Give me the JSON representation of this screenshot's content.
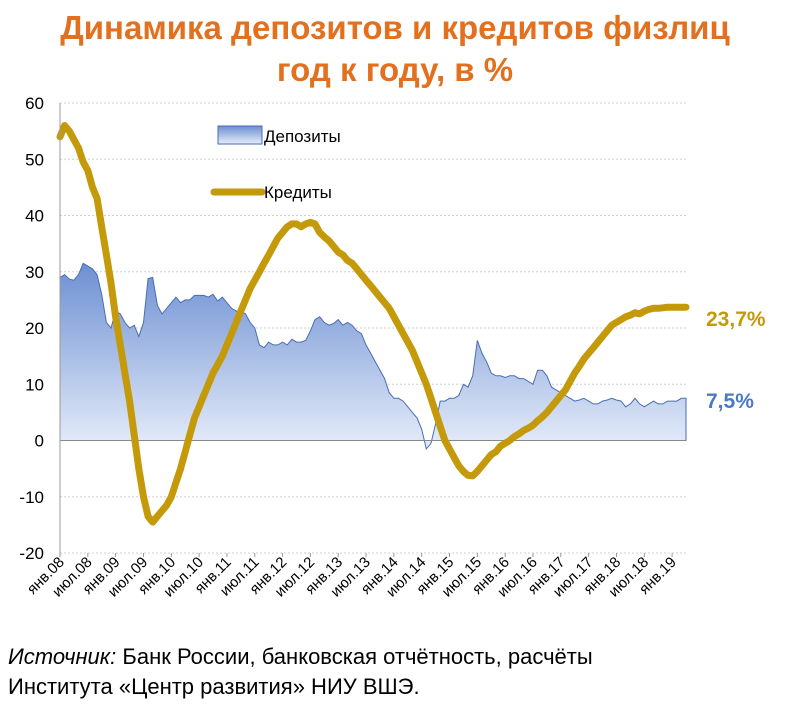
{
  "title_line1": "Динамика депозитов и кредитов физлиц",
  "title_line2": "год к году, в %",
  "source": {
    "label": "Источник:",
    "line1_rest": " Банк России, банковская отчётность, расчёты",
    "line2": "Института «Центр развития» НИУ ВШЭ."
  },
  "chart_data": {
    "type": "area",
    "ylim": [
      -20,
      60
    ],
    "yticks": [
      -20,
      -10,
      0,
      10,
      20,
      30,
      40,
      50,
      60
    ],
    "x_tick_labels": [
      "янв.08",
      "июл.08",
      "янв.09",
      "июл.09",
      "янв.10",
      "июл.10",
      "янв.11",
      "июл.11",
      "янв.12",
      "июл.12",
      "янв.13",
      "июл.13",
      "янв.14",
      "июл.14",
      "янв.15",
      "июл.15",
      "янв.16",
      "июл.16",
      "янв.17",
      "июл.17",
      "янв.18",
      "июл.18",
      "янв.19"
    ],
    "x_start": "2008-01",
    "x_end": "2019-04",
    "series": [
      {
        "name": "Депозиты",
        "kind": "area",
        "color": "#5B7FC4",
        "end_label": "7,5%",
        "points": [
          [
            "2008-01",
            29
          ],
          [
            "2008-02",
            29.5
          ],
          [
            "2008-03",
            28.7
          ],
          [
            "2008-04",
            28.5
          ],
          [
            "2008-05",
            29.5
          ],
          [
            "2008-06",
            31.5
          ],
          [
            "2008-07",
            31
          ],
          [
            "2008-08",
            30.5
          ],
          [
            "2008-09",
            29.5
          ],
          [
            "2008-10",
            26
          ],
          [
            "2008-11",
            21
          ],
          [
            "2008-12",
            20
          ],
          [
            "2009-01",
            23
          ],
          [
            "2009-02",
            22.5
          ],
          [
            "2009-03",
            21
          ],
          [
            "2009-04",
            20
          ],
          [
            "2009-05",
            20.5
          ],
          [
            "2009-06",
            18.5
          ],
          [
            "2009-07",
            21
          ],
          [
            "2009-08",
            28.8
          ],
          [
            "2009-09",
            29
          ],
          [
            "2009-10",
            24
          ],
          [
            "2009-11",
            22.5
          ],
          [
            "2009-12",
            23.5
          ],
          [
            "2010-01",
            24.5
          ],
          [
            "2010-02",
            25.5
          ],
          [
            "2010-03",
            24.5
          ],
          [
            "2010-04",
            25
          ],
          [
            "2010-05",
            25
          ],
          [
            "2010-06",
            25.8
          ],
          [
            "2010-07",
            25.8
          ],
          [
            "2010-08",
            25.8
          ],
          [
            "2010-09",
            25.5
          ],
          [
            "2010-10",
            26
          ],
          [
            "2010-11",
            24.8
          ],
          [
            "2010-12",
            25.5
          ],
          [
            "2011-01",
            24.5
          ],
          [
            "2011-02",
            23.5
          ],
          [
            "2011-03",
            23
          ],
          [
            "2011-04",
            23
          ],
          [
            "2011-05",
            22.5
          ],
          [
            "2011-06",
            21
          ],
          [
            "2011-07",
            20
          ],
          [
            "2011-08",
            17
          ],
          [
            "2011-09",
            16.5
          ],
          [
            "2011-10",
            17.5
          ],
          [
            "2011-11",
            17
          ],
          [
            "2011-12",
            17
          ],
          [
            "2012-01",
            17.5
          ],
          [
            "2012-02",
            17
          ],
          [
            "2012-03",
            18
          ],
          [
            "2012-04",
            17.5
          ],
          [
            "2012-05",
            17.5
          ],
          [
            "2012-06",
            17.8
          ],
          [
            "2012-07",
            19.5
          ],
          [
            "2012-08",
            21.5
          ],
          [
            "2012-09",
            22
          ],
          [
            "2012-10",
            21
          ],
          [
            "2012-11",
            20.5
          ],
          [
            "2012-12",
            20.8
          ],
          [
            "2013-01",
            21.5
          ],
          [
            "2013-02",
            20.5
          ],
          [
            "2013-03",
            21
          ],
          [
            "2013-04",
            20.5
          ],
          [
            "2013-05",
            19.5
          ],
          [
            "2013-06",
            19
          ],
          [
            "2013-07",
            17
          ],
          [
            "2013-08",
            15.5
          ],
          [
            "2013-09",
            14
          ],
          [
            "2013-10",
            12.5
          ],
          [
            "2013-11",
            11
          ],
          [
            "2013-12",
            8.5
          ],
          [
            "2014-01",
            7.5
          ],
          [
            "2014-02",
            7.5
          ],
          [
            "2014-03",
            7
          ],
          [
            "2014-04",
            6
          ],
          [
            "2014-05",
            5
          ],
          [
            "2014-06",
            4
          ],
          [
            "2014-07",
            2
          ],
          [
            "2014-08",
            -1.5
          ],
          [
            "2014-09",
            -0.5
          ],
          [
            "2014-10",
            3
          ],
          [
            "2014-11",
            7
          ],
          [
            "2014-12",
            7
          ],
          [
            "2015-01",
            7.5
          ],
          [
            "2015-02",
            7.5
          ],
          [
            "2015-03",
            8
          ],
          [
            "2015-04",
            10
          ],
          [
            "2015-05",
            9.5
          ],
          [
            "2015-06",
            11.5
          ],
          [
            "2015-07",
            17.8
          ],
          [
            "2015-08",
            15.5
          ],
          [
            "2015-09",
            14
          ],
          [
            "2015-10",
            12
          ],
          [
            "2015-11",
            11.5
          ],
          [
            "2015-12",
            11.5
          ],
          [
            "2016-01",
            11.2
          ],
          [
            "2016-02",
            11.5
          ],
          [
            "2016-03",
            11.5
          ],
          [
            "2016-04",
            11
          ],
          [
            "2016-05",
            11
          ],
          [
            "2016-06",
            10.5
          ],
          [
            "2016-07",
            10
          ],
          [
            "2016-08",
            12.5
          ],
          [
            "2016-09",
            12.5
          ],
          [
            "2016-10",
            11.5
          ],
          [
            "2016-11",
            9.5
          ],
          [
            "2016-12",
            9
          ],
          [
            "2017-01",
            8.5
          ],
          [
            "2017-02",
            8
          ],
          [
            "2017-03",
            7.5
          ],
          [
            "2017-04",
            7
          ],
          [
            "2017-05",
            7.2
          ],
          [
            "2017-06",
            7.5
          ],
          [
            "2017-07",
            7
          ],
          [
            "2017-08",
            6.5
          ],
          [
            "2017-09",
            6.5
          ],
          [
            "2017-10",
            7
          ],
          [
            "2017-11",
            7.2
          ],
          [
            "2017-12",
            7.5
          ],
          [
            "2018-01",
            7.2
          ],
          [
            "2018-02",
            7
          ],
          [
            "2018-03",
            6
          ],
          [
            "2018-04",
            6.5
          ],
          [
            "2018-05",
            7.5
          ],
          [
            "2018-06",
            6.5
          ],
          [
            "2018-07",
            6
          ],
          [
            "2018-08",
            6.5
          ],
          [
            "2018-09",
            7
          ],
          [
            "2018-10",
            6.5
          ],
          [
            "2018-11",
            6.5
          ],
          [
            "2018-12",
            7
          ],
          [
            "2019-01",
            7
          ],
          [
            "2019-02",
            7
          ],
          [
            "2019-03",
            7.5
          ],
          [
            "2019-04",
            7.5
          ]
        ]
      },
      {
        "name": "Кредиты",
        "kind": "line",
        "color": "#C49A0A",
        "end_label": "23,7%",
        "points": [
          [
            "2008-01",
            54
          ],
          [
            "2008-02",
            56
          ],
          [
            "2008-03",
            55
          ],
          [
            "2008-04",
            53.5
          ],
          [
            "2008-05",
            52
          ],
          [
            "2008-06",
            49.5
          ],
          [
            "2008-07",
            48
          ],
          [
            "2008-08",
            45
          ],
          [
            "2008-09",
            43
          ],
          [
            "2008-10",
            38
          ],
          [
            "2008-11",
            33
          ],
          [
            "2008-12",
            28
          ],
          [
            "2009-01",
            22
          ],
          [
            "2009-02",
            17
          ],
          [
            "2009-03",
            12
          ],
          [
            "2009-04",
            7
          ],
          [
            "2009-05",
            1
          ],
          [
            "2009-06",
            -5
          ],
          [
            "2009-07",
            -10
          ],
          [
            "2009-08",
            -13.5
          ],
          [
            "2009-09",
            -14.5
          ],
          [
            "2009-10",
            -13.5
          ],
          [
            "2009-11",
            -12.5
          ],
          [
            "2009-12",
            -11.5
          ],
          [
            "2010-01",
            -10
          ],
          [
            "2010-02",
            -7.5
          ],
          [
            "2010-03",
            -5
          ],
          [
            "2010-04",
            -2
          ],
          [
            "2010-05",
            1
          ],
          [
            "2010-06",
            4
          ],
          [
            "2010-07",
            6
          ],
          [
            "2010-08",
            8
          ],
          [
            "2010-09",
            10
          ],
          [
            "2010-10",
            12
          ],
          [
            "2010-11",
            13.5
          ],
          [
            "2010-12",
            15
          ],
          [
            "2011-01",
            17
          ],
          [
            "2011-02",
            19
          ],
          [
            "2011-03",
            21
          ],
          [
            "2011-04",
            23
          ],
          [
            "2011-05",
            25
          ],
          [
            "2011-06",
            27
          ],
          [
            "2011-07",
            28.5
          ],
          [
            "2011-08",
            30
          ],
          [
            "2011-09",
            31.5
          ],
          [
            "2011-10",
            33
          ],
          [
            "2011-11",
            34.5
          ],
          [
            "2011-12",
            36
          ],
          [
            "2012-01",
            37
          ],
          [
            "2012-02",
            38
          ],
          [
            "2012-03",
            38.5
          ],
          [
            "2012-04",
            38.5
          ],
          [
            "2012-05",
            38
          ],
          [
            "2012-06",
            38.5
          ],
          [
            "2012-07",
            38.8
          ],
          [
            "2012-08",
            38.5
          ],
          [
            "2012-09",
            37
          ],
          [
            "2012-10",
            36.2
          ],
          [
            "2012-11",
            35.5
          ],
          [
            "2012-12",
            34.5
          ],
          [
            "2013-01",
            33.5
          ],
          [
            "2013-02",
            33
          ],
          [
            "2013-03",
            32
          ],
          [
            "2013-04",
            31.5
          ],
          [
            "2013-05",
            30.5
          ],
          [
            "2013-06",
            29.5
          ],
          [
            "2013-07",
            28.5
          ],
          [
            "2013-08",
            27.5
          ],
          [
            "2013-09",
            26.5
          ],
          [
            "2013-10",
            25.5
          ],
          [
            "2013-11",
            24.5
          ],
          [
            "2013-12",
            23.5
          ],
          [
            "2014-01",
            22
          ],
          [
            "2014-02",
            20.5
          ],
          [
            "2014-03",
            19
          ],
          [
            "2014-04",
            17.5
          ],
          [
            "2014-05",
            16
          ],
          [
            "2014-06",
            14
          ],
          [
            "2014-07",
            12
          ],
          [
            "2014-08",
            10
          ],
          [
            "2014-09",
            7.5
          ],
          [
            "2014-10",
            5
          ],
          [
            "2014-11",
            2.5
          ],
          [
            "2014-12",
            0
          ],
          [
            "2015-01",
            -1.5
          ],
          [
            "2015-02",
            -3
          ],
          [
            "2015-03",
            -4.5
          ],
          [
            "2015-04",
            -5.5
          ],
          [
            "2015-05",
            -6.2
          ],
          [
            "2015-06",
            -6.3
          ],
          [
            "2015-07",
            -5.5
          ],
          [
            "2015-08",
            -4.5
          ],
          [
            "2015-09",
            -3.5
          ],
          [
            "2015-10",
            -2.5
          ],
          [
            "2015-11",
            -2
          ],
          [
            "2015-12",
            -1
          ],
          [
            "2016-01",
            -0.5
          ],
          [
            "2016-02",
            0
          ],
          [
            "2016-03",
            0.7
          ],
          [
            "2016-04",
            1.2
          ],
          [
            "2016-05",
            1.8
          ],
          [
            "2016-06",
            2.2
          ],
          [
            "2016-07",
            2.7
          ],
          [
            "2016-08",
            3.5
          ],
          [
            "2016-09",
            4.2
          ],
          [
            "2016-10",
            5
          ],
          [
            "2016-11",
            6
          ],
          [
            "2016-12",
            7
          ],
          [
            "2017-01",
            8
          ],
          [
            "2017-02",
            9
          ],
          [
            "2017-03",
            10.5
          ],
          [
            "2017-04",
            12
          ],
          [
            "2017-05",
            13.2
          ],
          [
            "2017-06",
            14.5
          ],
          [
            "2017-07",
            15.5
          ],
          [
            "2017-08",
            16.5
          ],
          [
            "2017-09",
            17.5
          ],
          [
            "2017-10",
            18.5
          ],
          [
            "2017-11",
            19.5
          ],
          [
            "2017-12",
            20.5
          ],
          [
            "2018-01",
            21
          ],
          [
            "2018-02",
            21.5
          ],
          [
            "2018-03",
            22
          ],
          [
            "2018-04",
            22.3
          ],
          [
            "2018-05",
            22.7
          ],
          [
            "2018-06",
            22.5
          ],
          [
            "2018-07",
            23
          ],
          [
            "2018-08",
            23.3
          ],
          [
            "2018-09",
            23.5
          ],
          [
            "2018-10",
            23.5
          ],
          [
            "2018-11",
            23.6
          ],
          [
            "2018-12",
            23.7
          ],
          [
            "2019-01",
            23.7
          ],
          [
            "2019-02",
            23.7
          ],
          [
            "2019-03",
            23.7
          ],
          [
            "2019-04",
            23.7
          ]
        ]
      }
    ],
    "legend": {
      "placement": "top-center"
    },
    "grid": true
  }
}
